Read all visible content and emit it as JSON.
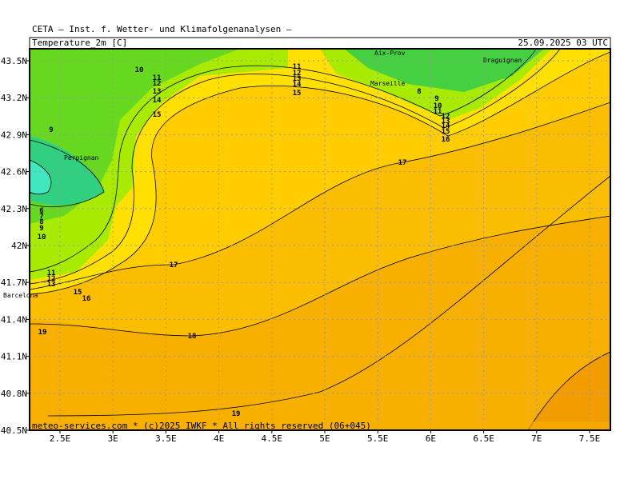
{
  "header": {
    "title": "CETA — Inst. f. Wetter- und Klimafolgenanalysen —",
    "variable": "Temperature_2m [C]",
    "time": "25.09.2025 03 UTC"
  },
  "map": {
    "xticks": [
      {
        "value": 2.5,
        "label": "2.5E"
      },
      {
        "value": 3,
        "label": "3E"
      },
      {
        "value": 3.5,
        "label": "3.5E"
      },
      {
        "value": 4,
        "label": "4E"
      },
      {
        "value": 4.5,
        "label": "4.5E"
      },
      {
        "value": 5,
        "label": "5E"
      },
      {
        "value": 5.5,
        "label": "5.5E"
      },
      {
        "value": 6,
        "label": "6E"
      },
      {
        "value": 6.5,
        "label": "6.5E"
      },
      {
        "value": 7,
        "label": "7E"
      },
      {
        "value": 7.5,
        "label": "7.5E"
      }
    ],
    "yticks": [
      {
        "value": 40.5,
        "label": "40.5N"
      },
      {
        "value": 40.8,
        "label": "40.8N"
      },
      {
        "value": 41.1,
        "label": "41.1N"
      },
      {
        "value": 41.4,
        "label": "41.4N"
      },
      {
        "value": 41.7,
        "label": "41.7N"
      },
      {
        "value": 42,
        "label": "42N"
      },
      {
        "value": 42.3,
        "label": "42.3N"
      },
      {
        "value": 42.6,
        "label": "42.6N"
      },
      {
        "value": 42.9,
        "label": "42.9N"
      },
      {
        "value": 43.2,
        "label": "43.2N"
      },
      {
        "value": 43.5,
        "label": "43.5N"
      }
    ],
    "cities": [
      "Aix-Prov",
      "Draguignan",
      "Marseille",
      "Perpignan",
      "Barcelona"
    ],
    "contour_labels": [
      "10",
      "11",
      "12",
      "13",
      "14",
      "15",
      "11",
      "12",
      "13",
      "14",
      "15",
      "9",
      "8",
      "9",
      "10",
      "11",
      "12",
      "13",
      "14",
      "15",
      "16",
      "17",
      "6",
      "7",
      "8",
      "9",
      "10",
      "11",
      "12",
      "13",
      "15",
      "16",
      "17",
      "19",
      "18",
      "19"
    ]
  },
  "footer": "meteo-services.com * (c)2025 IWKF * All rights reserved (06+045)"
}
